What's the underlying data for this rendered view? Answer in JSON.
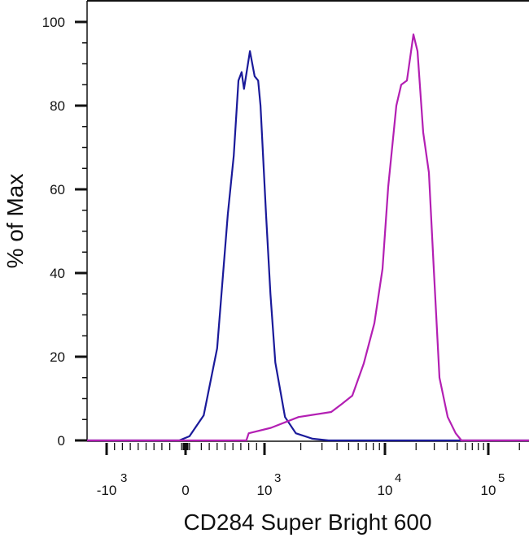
{
  "chart_data": {
    "type": "line",
    "title": "",
    "xlabel": "CD284 Super Bright 600",
    "ylabel": "% of Max",
    "x_scale": "biexponential",
    "xlim": [
      -1250,
      250000
    ],
    "ylim": [
      0,
      100
    ],
    "y_ticks": [
      0,
      20,
      40,
      60,
      80,
      100
    ],
    "x_ticks": [
      {
        "value": -1000,
        "base": "-10",
        "exp": "3"
      },
      {
        "value": 0,
        "base": "0",
        "exp": ""
      },
      {
        "value": 1000,
        "base": "10",
        "exp": "3"
      },
      {
        "value": 10000,
        "base": "10",
        "exp": "4"
      },
      {
        "value": 100000,
        "base": "10",
        "exp": "5"
      }
    ],
    "grid": false,
    "legend": "none",
    "series": [
      {
        "color": "#1a1a9a",
        "points": [
          [
            -1250,
            0
          ],
          [
            -80,
            0
          ],
          [
            50,
            1
          ],
          [
            230,
            6
          ],
          [
            400,
            22
          ],
          [
            535,
            54
          ],
          [
            610,
            68
          ],
          [
            670,
            86
          ],
          [
            710,
            88
          ],
          [
            740,
            84
          ],
          [
            815,
            93
          ],
          [
            875,
            87
          ],
          [
            920,
            86
          ],
          [
            950,
            80
          ],
          [
            1030,
            54
          ],
          [
            1120,
            35
          ],
          [
            1230,
            18.6
          ],
          [
            1480,
            5.6
          ],
          [
            1820,
            1.7
          ],
          [
            2500,
            0.4
          ],
          [
            3400,
            0
          ],
          [
            250000,
            0
          ]
        ]
      },
      {
        "color": "#b31fb3",
        "points": [
          [
            -1250,
            0
          ],
          [
            770,
            0
          ],
          [
            800,
            1.7
          ],
          [
            1130,
            3
          ],
          [
            1920,
            5.6
          ],
          [
            3580,
            6.8
          ],
          [
            4380,
            8.7
          ],
          [
            5360,
            10.7
          ],
          [
            6670,
            18.4
          ],
          [
            8170,
            28
          ],
          [
            9550,
            41
          ],
          [
            10750,
            60.6
          ],
          [
            12890,
            80
          ],
          [
            14370,
            85
          ],
          [
            16320,
            86
          ],
          [
            18870,
            97
          ],
          [
            20650,
            93
          ],
          [
            23440,
            73.6
          ],
          [
            26600,
            64
          ],
          [
            29690,
            41
          ],
          [
            33720,
            15
          ],
          [
            40450,
            5.6
          ],
          [
            48360,
            1.7
          ],
          [
            55020,
            0
          ],
          [
            250000,
            0
          ]
        ]
      }
    ]
  }
}
